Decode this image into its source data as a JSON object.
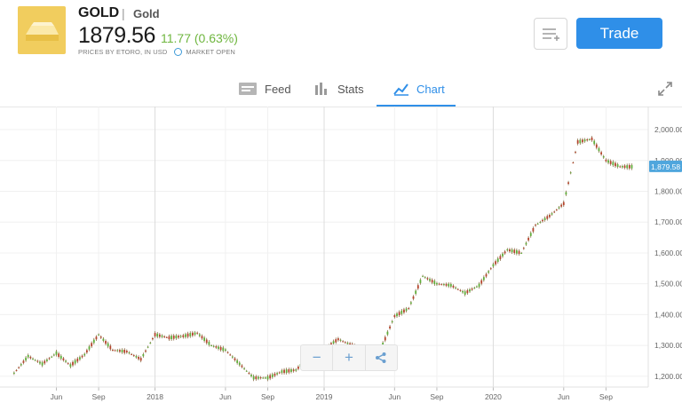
{
  "instrument": {
    "symbol": "GOLD",
    "separator": "|",
    "name": "Gold",
    "price": "1879.56",
    "change": "11.77 (0.63%)",
    "source_note": "PRICES BY ETORO, IN USD",
    "market_status": "MARKET OPEN"
  },
  "actions": {
    "trade_label": "Trade",
    "watchlist_icon": "add-to-list-icon"
  },
  "tabs": [
    {
      "label": "Feed",
      "icon": "feed-icon",
      "active": false
    },
    {
      "label": "Stats",
      "icon": "stats-icon",
      "active": false
    },
    {
      "label": "Chart",
      "icon": "chart-icon",
      "active": true
    }
  ],
  "colors": {
    "accent": "#2f8fe8",
    "up": "#6fb63f",
    "down": "#c0392b",
    "gold": "#f1cd5e"
  },
  "chart_controls": {
    "zoom_out": "−",
    "zoom_in": "+",
    "share_icon": "share-icon"
  },
  "chart_data": {
    "type": "line",
    "style": "candlestick",
    "x_ticks": [
      "Jun",
      "Sep",
      "2018",
      "Jun",
      "Sep",
      "2019",
      "Jun",
      "Sep",
      "2020",
      "Jun",
      "Sep"
    ],
    "y_ticks": [
      "2,000.00",
      "1,900.00",
      "1,800.00",
      "1,700.00",
      "1,600.00",
      "1,500.00",
      "1,400.00",
      "1,300.00",
      "1,200.00"
    ],
    "ylim": [
      1165,
      2075
    ],
    "last_price_label": "1,879.58",
    "grid": true,
    "series": [
      {
        "x": [
          "2017-03",
          "2017-04",
          "2017-05",
          "2017-06",
          "2017-07",
          "2017-08",
          "2017-09",
          "2017-10",
          "2017-11",
          "2017-12",
          "2018-01",
          "2018-02",
          "2018-03",
          "2018-04",
          "2018-05",
          "2018-06",
          "2018-07",
          "2018-08",
          "2018-09",
          "2018-10",
          "2018-11",
          "2018-12",
          "2019-01",
          "2019-02",
          "2019-03",
          "2019-04",
          "2019-05",
          "2019-06",
          "2019-07",
          "2019-08",
          "2019-09",
          "2019-10",
          "2019-11",
          "2019-12",
          "2020-01",
          "2020-02",
          "2020-03",
          "2020-04",
          "2020-05",
          "2020-06",
          "2020-07",
          "2020-08",
          "2020-09",
          "2020-10",
          "2020-11"
        ],
        "y": [
          1210,
          1265,
          1240,
          1275,
          1235,
          1270,
          1335,
          1285,
          1280,
          1255,
          1335,
          1325,
          1330,
          1340,
          1300,
          1285,
          1240,
          1195,
          1195,
          1215,
          1220,
          1265,
          1290,
          1320,
          1300,
          1280,
          1285,
          1395,
          1420,
          1525,
          1500,
          1495,
          1470,
          1495,
          1560,
          1610,
          1600,
          1690,
          1720,
          1760,
          1960,
          1970,
          1900,
          1880,
          1879.58
        ]
      }
    ]
  }
}
